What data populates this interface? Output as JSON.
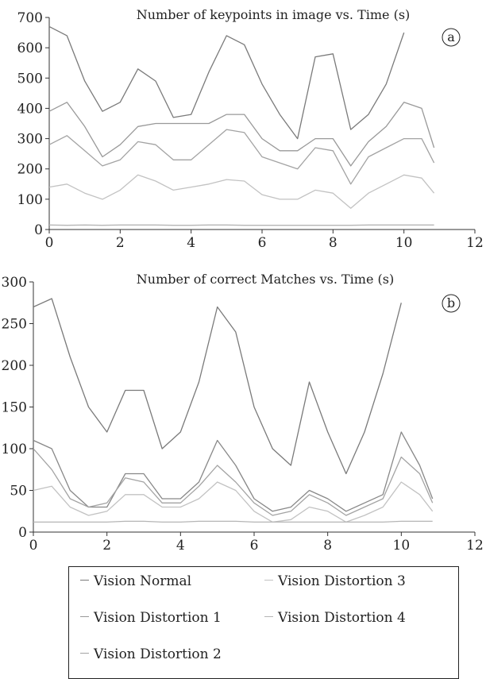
{
  "chart_data": [
    {
      "type": "line",
      "title": "Number of keypoints in image vs. Time (s)",
      "panel_label": "a",
      "xlabel": "",
      "ylabel": "",
      "xlim": [
        0,
        12
      ],
      "ylim": [
        0,
        700
      ],
      "xticks": [
        0,
        2,
        4,
        6,
        8,
        10,
        12
      ],
      "yticks": [
        0,
        100,
        200,
        300,
        400,
        500,
        600,
        700
      ],
      "grid": false,
      "x": [
        0,
        0.5,
        1,
        1.5,
        2,
        2.5,
        3,
        3.5,
        4,
        4.5,
        5,
        5.5,
        6,
        6.5,
        7,
        7.5,
        8,
        8.5,
        9,
        9.5,
        10,
        10.5,
        10.85
      ],
      "series": [
        {
          "name": "Vision Normal",
          "color": "#7a7a7a",
          "values": [
            670,
            640,
            490,
            390,
            420,
            530,
            490,
            370,
            380,
            520,
            640,
            610,
            480,
            380,
            300,
            570,
            580,
            330,
            380,
            480,
            650,
            null,
            null
          ]
        },
        {
          "name": "Vision Distortion 1",
          "color": "#999999",
          "values": [
            390,
            420,
            340,
            240,
            280,
            340,
            350,
            350,
            350,
            350,
            380,
            380,
            300,
            260,
            260,
            300,
            300,
            210,
            290,
            340,
            420,
            400,
            270
          ]
        },
        {
          "name": "Vision Distortion 2",
          "color": "#a3a3a3",
          "values": [
            280,
            310,
            260,
            210,
            230,
            290,
            280,
            230,
            230,
            280,
            330,
            320,
            240,
            220,
            200,
            270,
            260,
            150,
            240,
            270,
            300,
            300,
            220
          ]
        },
        {
          "name": "Vision Distortion 3",
          "color": "#c2c2c2",
          "values": [
            140,
            150,
            120,
            100,
            130,
            180,
            160,
            130,
            140,
            150,
            165,
            160,
            115,
            100,
            100,
            130,
            120,
            70,
            120,
            150,
            180,
            170,
            120
          ]
        },
        {
          "name": "Vision Distortion 4",
          "color": "#b5b5b5",
          "values": [
            15,
            14,
            15,
            14,
            15,
            15,
            15,
            14,
            14,
            15,
            15,
            14,
            14,
            14,
            14,
            14,
            14,
            14,
            15,
            15,
            15,
            15,
            15
          ]
        }
      ]
    },
    {
      "type": "line",
      "title": "Number of correct Matches vs. Time (s)",
      "panel_label": "b",
      "xlabel": "",
      "ylabel": "",
      "xlim": [
        0,
        12
      ],
      "ylim": [
        0,
        300
      ],
      "xticks": [
        0,
        2,
        4,
        6,
        8,
        10,
        12
      ],
      "yticks": [
        0,
        50,
        100,
        150,
        200,
        250,
        300
      ],
      "grid": false,
      "x": [
        0,
        0.5,
        1,
        1.5,
        2,
        2.5,
        3,
        3.5,
        4,
        4.5,
        5,
        5.5,
        6,
        6.5,
        7,
        7.5,
        8,
        8.5,
        9,
        9.5,
        10,
        10.5,
        10.85
      ],
      "series": [
        {
          "name": "Vision Normal",
          "color": "#7a7a7a",
          "values": [
            270,
            280,
            210,
            150,
            120,
            170,
            170,
            100,
            120,
            180,
            270,
            240,
            150,
            100,
            80,
            180,
            120,
            70,
            120,
            190,
            275,
            null,
            null
          ]
        },
        {
          "name": "Vision Distortion 1",
          "color": "#888888",
          "values": [
            110,
            100,
            50,
            30,
            30,
            70,
            70,
            40,
            40,
            60,
            110,
            80,
            40,
            25,
            30,
            50,
            40,
            25,
            35,
            45,
            120,
            80,
            40
          ]
        },
        {
          "name": "Vision Distortion 2",
          "color": "#a3a3a3",
          "values": [
            100,
            75,
            40,
            30,
            35,
            65,
            60,
            35,
            35,
            55,
            80,
            60,
            35,
            20,
            25,
            45,
            35,
            20,
            30,
            40,
            90,
            70,
            35
          ]
        },
        {
          "name": "Vision Distortion 3",
          "color": "#c2c2c2",
          "values": [
            50,
            55,
            30,
            20,
            25,
            45,
            45,
            30,
            30,
            40,
            60,
            50,
            25,
            12,
            15,
            30,
            25,
            12,
            20,
            30,
            60,
            45,
            25
          ]
        },
        {
          "name": "Vision Distortion 4",
          "color": "#b5b5b5",
          "values": [
            12,
            12,
            12,
            12,
            12,
            13,
            13,
            12,
            12,
            13,
            13,
            13,
            12,
            12,
            12,
            12,
            12,
            12,
            12,
            12,
            13,
            13,
            13
          ]
        }
      ]
    }
  ],
  "legend": {
    "items": [
      {
        "label": "Vision Normal",
        "color": "#7a7a7a"
      },
      {
        "label": "Vision Distortion 1",
        "color": "#999999"
      },
      {
        "label": "Vision Distortion 2",
        "color": "#a3a3a3"
      },
      {
        "label": "Vision Distortion 3",
        "color": "#c2c2c2"
      },
      {
        "label": "Vision Distortion 4",
        "color": "#b5b5b5"
      }
    ]
  }
}
